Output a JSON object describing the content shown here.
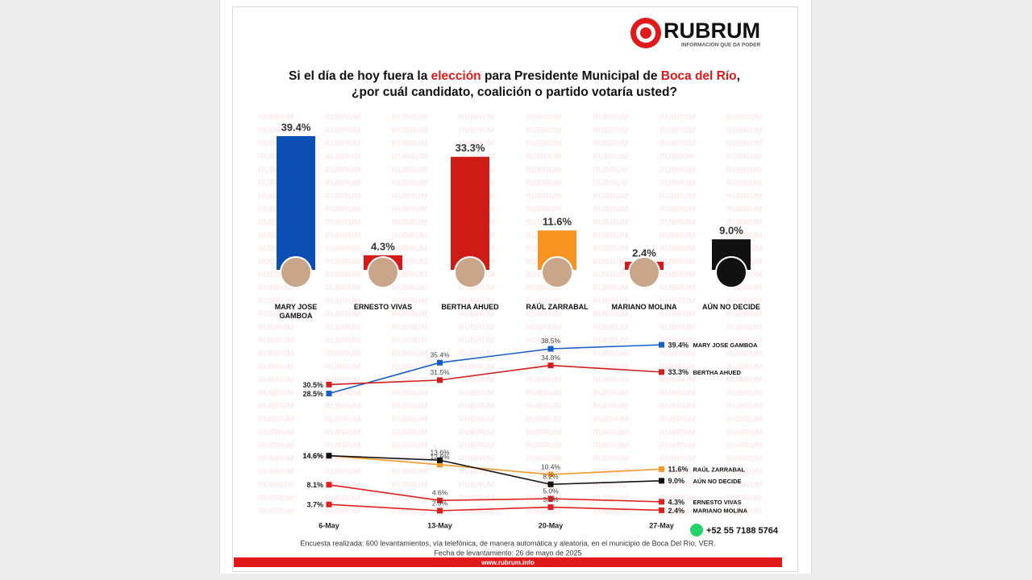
{
  "header": {
    "logo": "RUBRUM",
    "tagline": "INFORMACIÓN QUE DA PODER",
    "title_line1": [
      {
        "text": "Si el día de hoy fuera la ",
        "highlight": false
      },
      {
        "text": "elección",
        "highlight": true
      },
      {
        "text": " para Presidente Municipal de ",
        "highlight": false
      },
      {
        "text": "Boca del Río",
        "highlight": true
      },
      {
        "text": ",",
        "highlight": false
      }
    ],
    "title_line2": "¿por cuál candidato, coalición o partido votaría usted?",
    "highlight_color": "#e0191b",
    "watermark": "RUBRUM"
  },
  "chart_data": [
    {
      "type": "bar",
      "categories": [
        "MARY JOSE GAMBOA",
        "ERNESTO VIVAS",
        "BERTHA AHUED",
        "RAÚL ZARRABAL",
        "MARIANO MOLINA",
        "AÚN NO DECIDE"
      ],
      "values": [
        39.4,
        4.3,
        33.3,
        11.6,
        2.4,
        9.0
      ],
      "value_labels": [
        "39.4%",
        "4.3%",
        "33.3%",
        "11.6%",
        "2.4%",
        "9.0%"
      ],
      "colors": [
        "#0b4fb5",
        "#d7191c",
        "#cf1b16",
        "#f7931e",
        "#d7191c",
        "#111111"
      ]
    },
    {
      "type": "line",
      "categories": [
        "6-May",
        "13-May",
        "20-May",
        "27-May"
      ],
      "series": [
        {
          "name": "MARY JOSE GAMBOA",
          "color": "#1560c8",
          "values": [
            28.5,
            35.4,
            38.5,
            39.4
          ],
          "value_labels": [
            "28.5%",
            "35.4%",
            "38.5%",
            "39.4%"
          ]
        },
        {
          "name": "BERTHA AHUED",
          "color": "#d11f1f",
          "values": [
            30.5,
            31.5,
            34.8,
            33.3
          ],
          "value_labels": [
            "30.5%",
            "31.5%",
            "34.8%",
            "33.3%"
          ]
        },
        {
          "name": "RAÚL ZARRABAL",
          "color": "#f39a2a",
          "values": [
            14.6,
            12.6,
            10.4,
            11.6
          ],
          "value_labels": [
            "14.6%",
            "12.6%",
            "10.4%",
            "11.6%"
          ]
        },
        {
          "name": "AÚN NO DECIDE",
          "color": "#111111",
          "values": [
            14.6,
            13.6,
            8.2,
            9.0
          ],
          "value_labels": [
            "14.6%",
            "13.6%",
            "8.2%",
            "9.0%"
          ]
        },
        {
          "name": "ERNESTO VIVAS",
          "color": "#e02020",
          "values": [
            8.1,
            4.6,
            5.0,
            4.3
          ],
          "value_labels": [
            "8.1%",
            "4.6%",
            "5.0%",
            "4.3%"
          ]
        },
        {
          "name": "MARIANO MOLINA",
          "color": "#e02020",
          "values": [
            3.7,
            2.3,
            3.1,
            2.4
          ],
          "value_labels": [
            "3.7%",
            "2.3%",
            "3.1%",
            "2.4%"
          ]
        }
      ]
    }
  ],
  "footer": {
    "phone": "+52 55 7188 5764",
    "note_line1": "Encuesta realizada: 600 levantamientos, vía telefónica, de manera automática y aleatoria, en el municipio de Boca Del Río, VER.",
    "note_line2": "Fecha de levantamiento: 26 de mayo de 2025",
    "website": "www.rubrum.info"
  }
}
